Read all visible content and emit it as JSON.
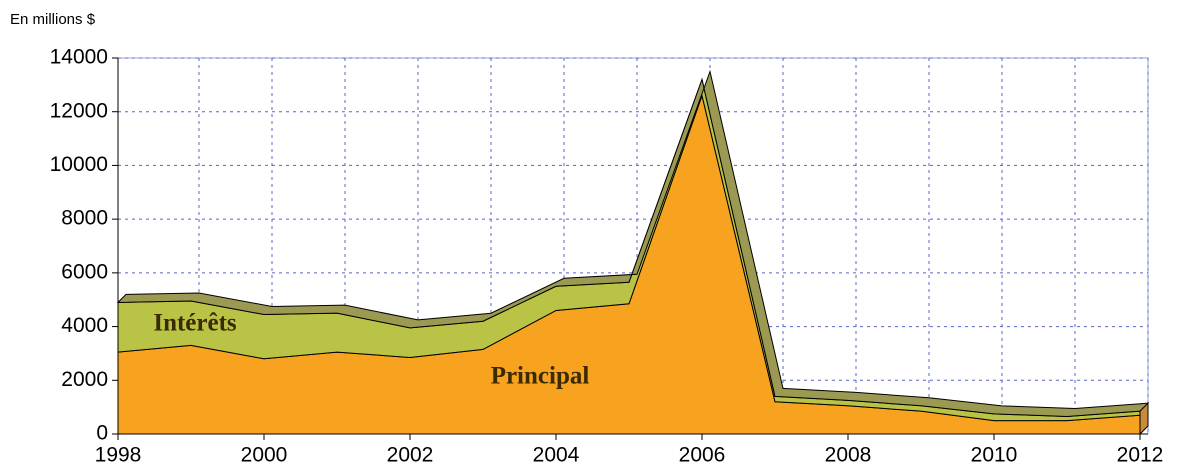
{
  "chart_data": {
    "type": "stacked_area",
    "y_label": "En millions $",
    "x": [
      1998,
      1999,
      2000,
      2001,
      2002,
      2003,
      2004,
      2005,
      2006,
      2007,
      2008,
      2009,
      2010,
      2011,
      2012
    ],
    "series": [
      {
        "name": "Principal",
        "color": "#f7a31f",
        "values": [
          3050,
          3300,
          2800,
          3050,
          2850,
          3150,
          4600,
          4850,
          12600,
          1200,
          1050,
          850,
          500,
          500,
          700
        ]
      },
      {
        "name": "Intérêts",
        "color": "#b9c447",
        "values": [
          1850,
          1650,
          1650,
          1450,
          1100,
          1050,
          900,
          800,
          600,
          200,
          200,
          200,
          250,
          150,
          150
        ]
      }
    ],
    "xlim": [
      1998,
      2012
    ],
    "xticks": [
      1998,
      2000,
      2002,
      2004,
      2006,
      2008,
      2010,
      2012
    ],
    "ylim": [
      0,
      14000
    ],
    "yticks": [
      0,
      2000,
      4000,
      6000,
      8000,
      10000,
      12000,
      14000
    ],
    "grid": true
  }
}
